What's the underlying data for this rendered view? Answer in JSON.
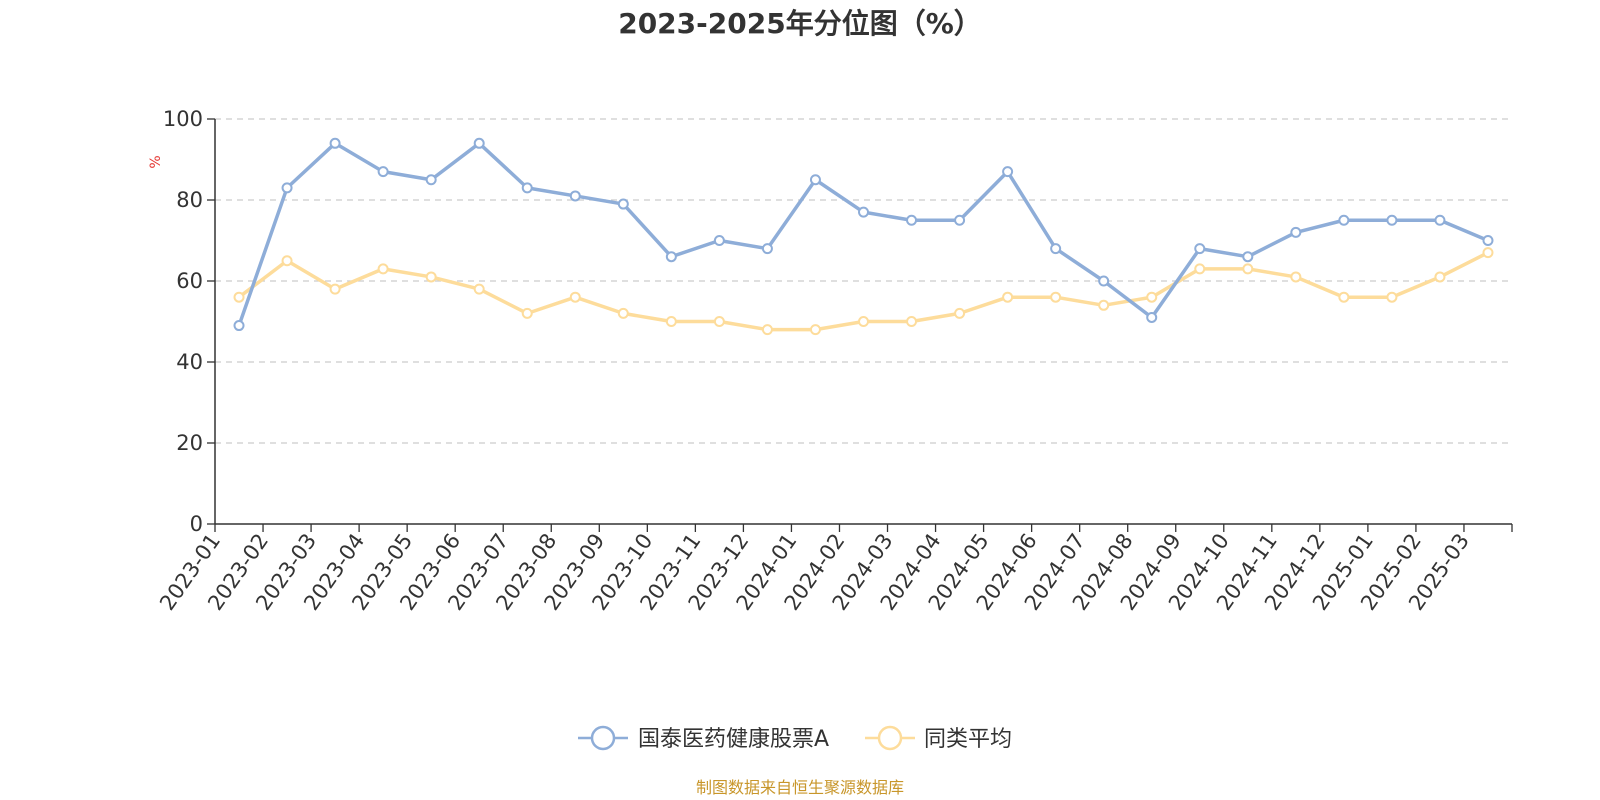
{
  "chart_data": {
    "type": "line",
    "title": "2023-2025年分位图（%）",
    "ylabel": "%",
    "xlabel": "",
    "ylim": [
      0,
      100
    ],
    "yticks": [
      0,
      20,
      40,
      60,
      80,
      100
    ],
    "grid": true,
    "legend_position": "bottom-center",
    "categories": [
      "2023-01",
      "2023-02",
      "2023-03",
      "2023-04",
      "2023-05",
      "2023-06",
      "2023-07",
      "2023-08",
      "2023-09",
      "2023-10",
      "2023-11",
      "2023-12",
      "2024-01",
      "2024-02",
      "2024-03",
      "2024-04",
      "2024-05",
      "2024-06",
      "2024-07",
      "2024-08",
      "2024-09",
      "2024-10",
      "2024-11",
      "2024-12",
      "2025-01",
      "2025-02",
      "2025-03"
    ],
    "series": [
      {
        "name": "国泰医药健康股票A",
        "color": "#8eadd8",
        "values": [
          49,
          83,
          94,
          87,
          85,
          94,
          83,
          81,
          79,
          66,
          70,
          68,
          85,
          77,
          75,
          75,
          87,
          68,
          60,
          51,
          68,
          66,
          72,
          75,
          75,
          75,
          70
        ]
      },
      {
        "name": "同类平均",
        "color": "#fddc9b",
        "values": [
          56,
          65,
          58,
          63,
          61,
          58,
          52,
          56,
          52,
          50,
          50,
          48,
          48,
          50,
          50,
          52,
          56,
          56,
          54,
          56,
          63,
          63,
          61,
          56,
          56,
          61,
          67
        ]
      }
    ]
  },
  "source": "制图数据来自恒生聚源数据库"
}
